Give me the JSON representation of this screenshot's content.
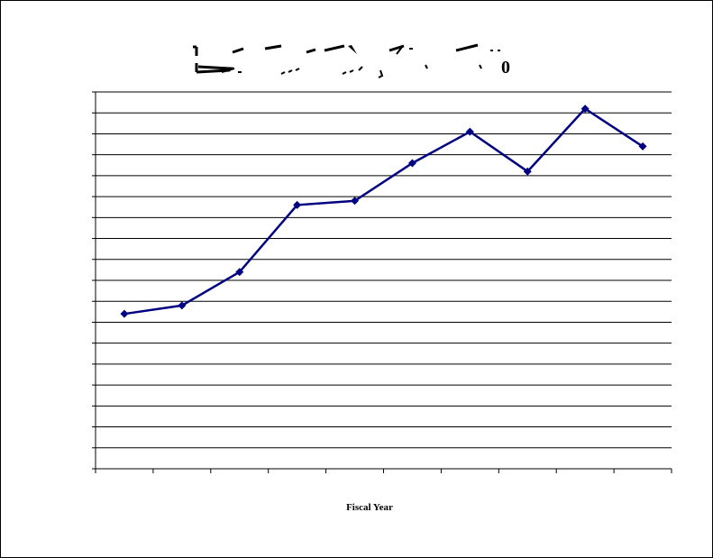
{
  "chart_data": {
    "type": "line",
    "title_fragments": [
      "0"
    ],
    "xlabel": "Fiscal Year",
    "ylabel": "",
    "categories": [
      "",
      "",
      "",
      "",
      "",
      "",
      "",
      "",
      "",
      ""
    ],
    "series": [
      {
        "values": [
          7.4,
          7.8,
          9.4,
          12.6,
          12.8,
          14.6,
          16.1,
          14.2,
          17.2,
          15.4
        ]
      }
    ],
    "ylim": [
      0,
      18
    ],
    "ytick_count": 18,
    "grid": true,
    "legend": "none",
    "colors": {
      "series": "#000080",
      "grid": "#000000",
      "axis": "#000000"
    }
  }
}
